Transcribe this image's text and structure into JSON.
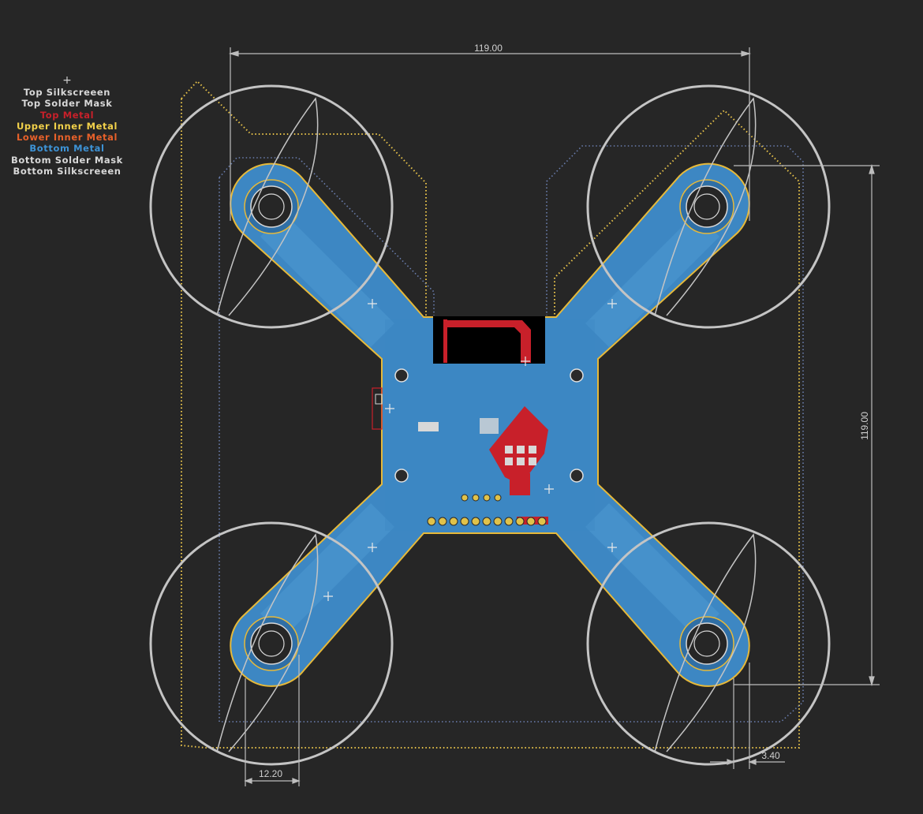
{
  "legend": {
    "origin_marker": "+",
    "layers": [
      {
        "label": "Top Silkscreeen",
        "color": "#d8d8d8"
      },
      {
        "label": "Top Solder Mask",
        "color": "#d8d8d8"
      },
      {
        "label": "Top Metal",
        "color": "#c8202a"
      },
      {
        "label": "Upper Inner Metal",
        "color": "#f2d14a"
      },
      {
        "label": "Lower Inner Metal",
        "color": "#e8612a"
      },
      {
        "label": "Bottom Metal",
        "color": "#3d93d6"
      },
      {
        "label": "Bottom Solder Mask",
        "color": "#d8d8d8"
      },
      {
        "label": "Bottom Silkscreeen",
        "color": "#d8d8d8"
      }
    ]
  },
  "dimensions": {
    "width": "119.00",
    "height": "119.00",
    "mount_spacing": "12.20",
    "edge_offset": "3.40"
  },
  "colors": {
    "background": "#262626",
    "board_fill": "#3d93d6",
    "board_outline": "#e6b93a",
    "silk": "#c9c9c9",
    "top_metal": "#c8202a",
    "upper_inner": "#f2d14a",
    "dotted_bottom": "#6b7fb0"
  }
}
